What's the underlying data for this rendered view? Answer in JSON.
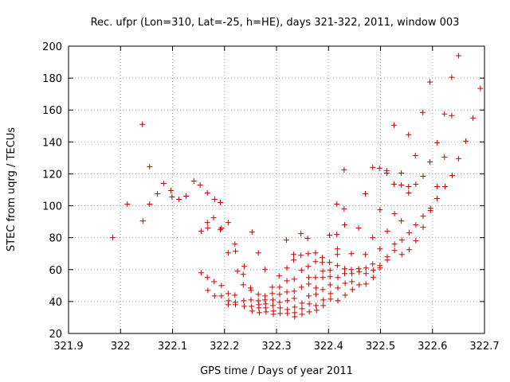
{
  "chart_data": {
    "type": "scatter",
    "title": "Rec. ufpr (Lon=310, Lat=-25, h=HE), days 321-322, 2011, window 003",
    "xlabel": "GPS time / Days of year 2011",
    "ylabel": "STEC from uqrg / TECUs",
    "xlim": [
      321.9,
      322.7
    ],
    "ylim": [
      20,
      200
    ],
    "xticks": [
      321.9,
      322.0,
      322.1,
      322.2,
      322.3,
      322.4,
      322.5,
      322.6,
      322.7
    ],
    "xtick_labels": [
      "321.9",
      "322",
      "322.1",
      "322.2",
      "322.3",
      "322.4",
      "322.5",
      "322.6",
      "322.7"
    ],
    "yticks": [
      20,
      40,
      60,
      80,
      100,
      120,
      140,
      160,
      180,
      200
    ],
    "ytick_labels": [
      "20",
      "40",
      "60",
      "80",
      "100",
      "120",
      "140",
      "160",
      "180",
      "200"
    ],
    "grid": true,
    "marker": "+",
    "color": "#cc0000",
    "points": [
      [
        321.985,
        80
      ],
      [
        322.013,
        101
      ],
      [
        322.042,
        151
      ],
      [
        322.043,
        90.5
      ],
      [
        322.056,
        124.5
      ],
      [
        322.056,
        101
      ],
      [
        322.071,
        107.5
      ],
      [
        322.083,
        114
      ],
      [
        322.097,
        109.5
      ],
      [
        322.099,
        105.5
      ],
      [
        322.112,
        104
      ],
      [
        322.126,
        106
      ],
      [
        322.141,
        115.5
      ],
      [
        322.153,
        113
      ],
      [
        322.155,
        84
      ],
      [
        322.167,
        108
      ],
      [
        322.167,
        89.5
      ],
      [
        322.168,
        86
      ],
      [
        322.179,
        92.5
      ],
      [
        322.181,
        104
      ],
      [
        322.192,
        102
      ],
      [
        322.194,
        86
      ],
      [
        322.192,
        85
      ],
      [
        322.207,
        89.5
      ],
      [
        322.207,
        70.5
      ],
      [
        322.22,
        76
      ],
      [
        322.221,
        71.5
      ],
      [
        322.236,
        57
      ],
      [
        322.238,
        62
      ],
      [
        322.253,
        83.5
      ],
      [
        322.265,
        70.5
      ],
      [
        322.278,
        60
      ],
      [
        322.155,
        58
      ],
      [
        322.167,
        55
      ],
      [
        322.168,
        47
      ],
      [
        322.18,
        52.5
      ],
      [
        322.181,
        43.5
      ],
      [
        322.194,
        50
      ],
      [
        322.194,
        43.5
      ],
      [
        322.207,
        45
      ],
      [
        322.208,
        40.5
      ],
      [
        322.207,
        38
      ],
      [
        322.22,
        44
      ],
      [
        322.221,
        39.5
      ],
      [
        322.221,
        38
      ],
      [
        322.225,
        59
      ],
      [
        322.236,
        50.5
      ],
      [
        322.237,
        40.5
      ],
      [
        322.238,
        37
      ],
      [
        322.25,
        48.5
      ],
      [
        322.251,
        47
      ],
      [
        322.251,
        41
      ],
      [
        322.252,
        37
      ],
      [
        322.253,
        34
      ],
      [
        322.265,
        44.5
      ],
      [
        322.265,
        40.5
      ],
      [
        322.266,
        38
      ],
      [
        322.266,
        36
      ],
      [
        322.267,
        33
      ],
      [
        322.278,
        43.5
      ],
      [
        322.278,
        41
      ],
      [
        322.279,
        38.5
      ],
      [
        322.279,
        36
      ],
      [
        322.28,
        33.5
      ],
      [
        322.292,
        49
      ],
      [
        322.292,
        45
      ],
      [
        322.293,
        41
      ],
      [
        322.293,
        37.5
      ],
      [
        322.294,
        34
      ],
      [
        322.294,
        32
      ],
      [
        322.305,
        56
      ],
      [
        322.306,
        49
      ],
      [
        322.306,
        44.5
      ],
      [
        322.306,
        39.5
      ],
      [
        322.307,
        36
      ],
      [
        322.307,
        32.5
      ],
      [
        322.319,
        78.5
      ],
      [
        322.32,
        61
      ],
      [
        322.32,
        53
      ],
      [
        322.32,
        46
      ],
      [
        322.321,
        40.5
      ],
      [
        322.321,
        35
      ],
      [
        322.321,
        32.5
      ],
      [
        322.333,
        69.5
      ],
      [
        322.333,
        66
      ],
      [
        322.334,
        54
      ],
      [
        322.334,
        46.5
      ],
      [
        322.334,
        42
      ],
      [
        322.335,
        36.5
      ],
      [
        322.335,
        33
      ],
      [
        322.335,
        30.5
      ],
      [
        322.347,
        82.5
      ],
      [
        322.347,
        69
      ],
      [
        322.348,
        59.5
      ],
      [
        322.348,
        49
      ],
      [
        322.349,
        39
      ],
      [
        322.349,
        35.5
      ],
      [
        322.349,
        32
      ],
      [
        322.36,
        79.5
      ],
      [
        322.361,
        70
      ],
      [
        322.361,
        62
      ],
      [
        322.362,
        55
      ],
      [
        322.362,
        51
      ],
      [
        322.362,
        43.5
      ],
      [
        322.363,
        38.5
      ],
      [
        322.363,
        33.5
      ],
      [
        322.375,
        70.5
      ],
      [
        322.375,
        65
      ],
      [
        322.375,
        55
      ],
      [
        322.376,
        48.5
      ],
      [
        322.376,
        44.5
      ],
      [
        322.376,
        37.5
      ],
      [
        322.377,
        34.5
      ],
      [
        322.388,
        67.5
      ],
      [
        322.388,
        64.5
      ],
      [
        322.389,
        59
      ],
      [
        322.389,
        55
      ],
      [
        322.389,
        47.5
      ],
      [
        322.39,
        41
      ],
      [
        322.39,
        37.5
      ],
      [
        322.402,
        81.5
      ],
      [
        322.402,
        64.5
      ],
      [
        322.403,
        59.5
      ],
      [
        322.403,
        55.5
      ],
      [
        322.403,
        50.5
      ],
      [
        322.404,
        45
      ],
      [
        322.404,
        41.5
      ],
      [
        322.416,
        101
      ],
      [
        322.416,
        82
      ],
      [
        322.417,
        73
      ],
      [
        322.417,
        69.5
      ],
      [
        322.417,
        62.5
      ],
      [
        322.418,
        55
      ],
      [
        322.418,
        48.5
      ],
      [
        322.418,
        40.5
      ],
      [
        322.43,
        122.5
      ],
      [
        322.43,
        98
      ],
      [
        322.431,
        88
      ],
      [
        322.431,
        60.5
      ],
      [
        322.431,
        57.5
      ],
      [
        322.432,
        51.5
      ],
      [
        322.432,
        44
      ],
      [
        322.444,
        70
      ],
      [
        322.444,
        60
      ],
      [
        322.445,
        57.5
      ],
      [
        322.445,
        52.5
      ],
      [
        322.446,
        47.5
      ],
      [
        322.458,
        86
      ],
      [
        322.458,
        60.5
      ],
      [
        322.459,
        58.5
      ],
      [
        322.459,
        50.5
      ],
      [
        322.471,
        107.5
      ],
      [
        322.471,
        69.5
      ],
      [
        322.472,
        61
      ],
      [
        322.472,
        57.5
      ],
      [
        322.472,
        51
      ],
      [
        322.485,
        124
      ],
      [
        322.485,
        80
      ],
      [
        322.485,
        63.5
      ],
      [
        322.486,
        59.5
      ],
      [
        322.486,
        55
      ],
      [
        322.498,
        123.5
      ],
      [
        322.499,
        97.5
      ],
      [
        322.499,
        73
      ],
      [
        322.499,
        62.5
      ],
      [
        322.499,
        61
      ],
      [
        322.512,
        122
      ],
      [
        322.512,
        120.5
      ],
      [
        322.513,
        84
      ],
      [
        322.513,
        68
      ],
      [
        322.513,
        66
      ],
      [
        322.526,
        150.5
      ],
      [
        322.526,
        113.5
      ],
      [
        322.527,
        95
      ],
      [
        322.527,
        76
      ],
      [
        322.527,
        72
      ],
      [
        322.54,
        120.5
      ],
      [
        322.54,
        113
      ],
      [
        322.54,
        90.5
      ],
      [
        322.541,
        78.5
      ],
      [
        322.541,
        69.5
      ],
      [
        322.554,
        144.5
      ],
      [
        322.554,
        112
      ],
      [
        322.554,
        108
      ],
      [
        322.555,
        83
      ],
      [
        322.555,
        72.5
      ],
      [
        322.567,
        131.5
      ],
      [
        322.568,
        113.5
      ],
      [
        322.568,
        88
      ],
      [
        322.568,
        78
      ],
      [
        322.581,
        158.5
      ],
      [
        322.582,
        118.5
      ],
      [
        322.582,
        93.5
      ],
      [
        322.582,
        86.5
      ],
      [
        322.595,
        177.5
      ],
      [
        322.595,
        127.5
      ],
      [
        322.596,
        98.5
      ],
      [
        322.596,
        97
      ],
      [
        322.609,
        139.5
      ],
      [
        322.609,
        112
      ],
      [
        322.609,
        104.5
      ],
      [
        322.623,
        157.5
      ],
      [
        322.623,
        130.5
      ],
      [
        322.624,
        112
      ],
      [
        322.637,
        180.5
      ],
      [
        322.637,
        156.5
      ],
      [
        322.638,
        119
      ],
      [
        322.65,
        194
      ],
      [
        322.65,
        129.5
      ],
      [
        322.664,
        140.5
      ],
      [
        322.678,
        155
      ],
      [
        322.692,
        173.5
      ]
    ]
  }
}
